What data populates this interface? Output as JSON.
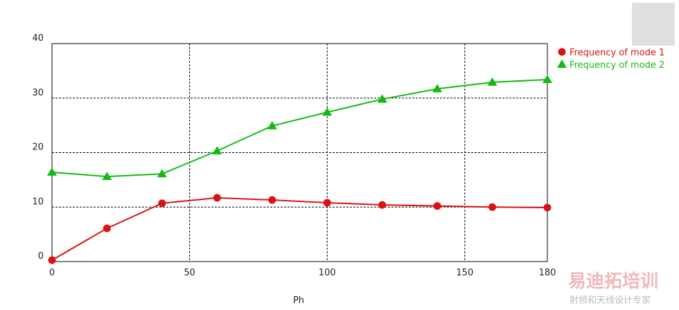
{
  "chart_data": {
    "type": "line",
    "xlabel": "Ph",
    "x": [
      0,
      20,
      40,
      60,
      80,
      100,
      120,
      140,
      160,
      180
    ],
    "series": [
      {
        "name": "Frequency of mode 1",
        "color": "#dd1111",
        "marker": "circle",
        "values": [
          0.25,
          6.1,
          10.7,
          11.7,
          11.3,
          10.8,
          10.4,
          10.2,
          10.0,
          9.9
        ]
      },
      {
        "name": "Frequency of mode 2",
        "color": "#11bb11",
        "marker": "triangle",
        "values": [
          16.4,
          15.6,
          16.1,
          20.3,
          24.9,
          27.4,
          29.8,
          31.7,
          32.9,
          33.4
        ]
      }
    ],
    "xlim": [
      0,
      180
    ],
    "xticks": [
      0,
      50,
      100,
      150,
      180
    ],
    "ylim": [
      0,
      40
    ],
    "yticks": [
      0,
      10,
      20,
      30,
      40
    ],
    "grid": true,
    "legend": "right"
  },
  "watermark": {
    "brand": "易迪拓培训",
    "slogan": "射频和天线设计专家"
  }
}
